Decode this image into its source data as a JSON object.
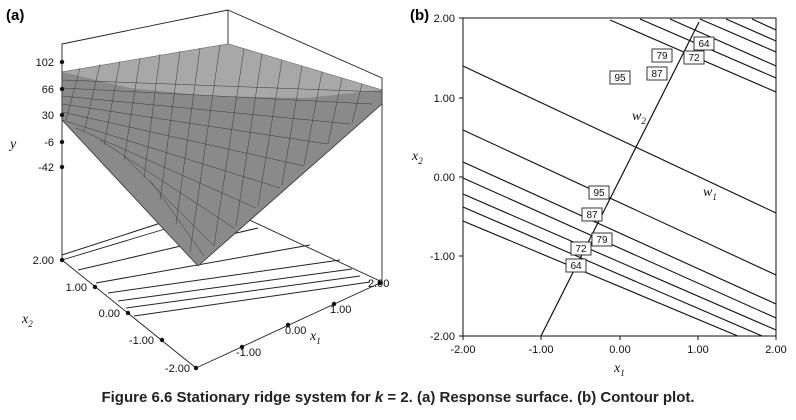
{
  "figure": {
    "caption_prefix": "Figure 6.6 Stationary ridge system for ",
    "caption_k": "k",
    "caption_suffix": " = 2. (a) Response surface. (b) Contour plot."
  },
  "chart_data": [
    {
      "panel": "(a)",
      "type": "surface3d",
      "title": "",
      "zlabel": "y",
      "xlabel": "x1",
      "ylabel": "x2",
      "z_ticks": [
        "102",
        "66",
        "30",
        "-6",
        "-42"
      ],
      "x1_ticks": [
        "-1.00",
        "0.00",
        "1.00",
        "2.00"
      ],
      "x2_ticks": [
        "2.00",
        "1.00",
        "0.00",
        "-1.00",
        "-2.00"
      ],
      "x1_range": [
        -2,
        2
      ],
      "x2_range": [
        -2,
        2
      ]
    },
    {
      "panel": "(b)",
      "type": "contour",
      "title": "",
      "xlabel": "x1",
      "ylabel": "x2",
      "x_ticks": [
        "-2.00",
        "-1.00",
        "0.00",
        "1.00",
        "2.00"
      ],
      "y_ticks": [
        "2.00",
        "1.00",
        "0.00",
        "-1.00",
        "-2.00"
      ],
      "xlim": [
        -2,
        2
      ],
      "ylim": [
        -2,
        2
      ],
      "axis_labels": {
        "w1": "w1",
        "w2": "w2"
      },
      "contour_levels": [
        "64",
        "72",
        "79",
        "87",
        "95"
      ]
    }
  ]
}
